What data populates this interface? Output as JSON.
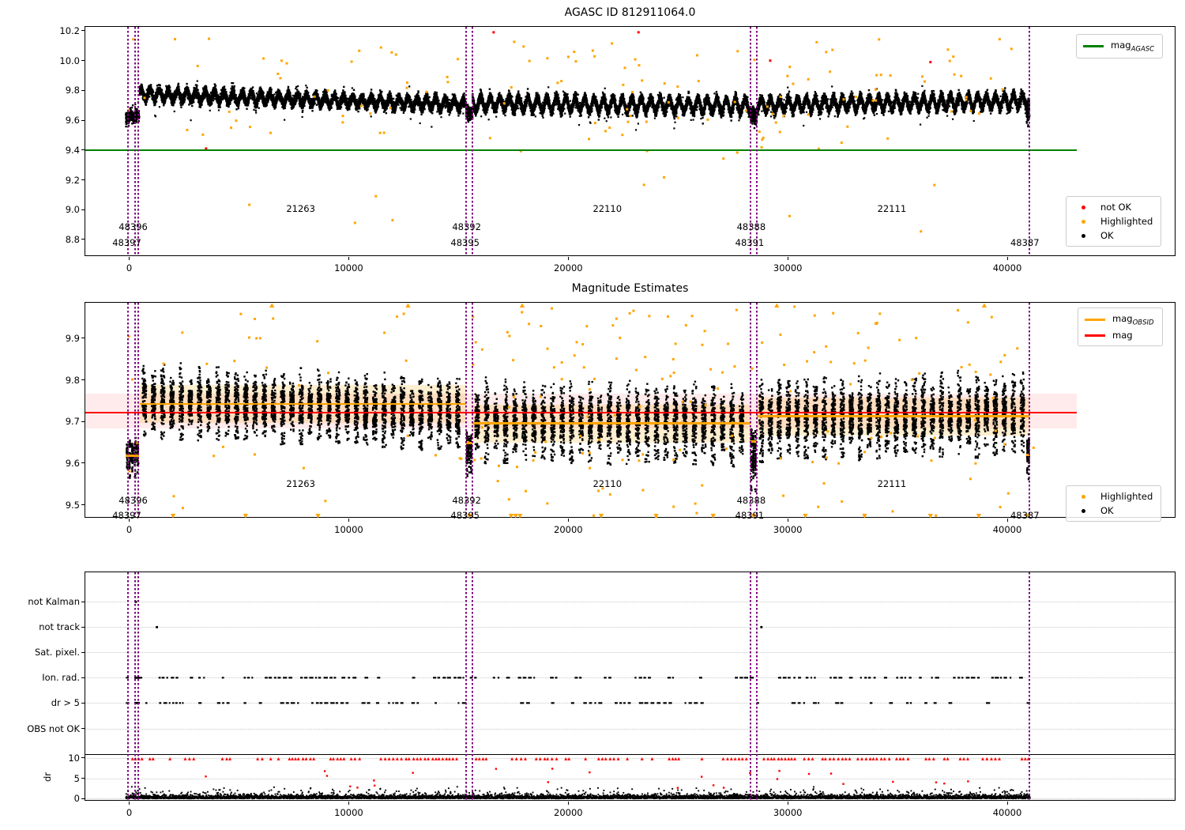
{
  "figure_background": "#ffffff",
  "colors": {
    "ok": "#000000",
    "highlighted": "#ffa500",
    "not_ok": "#ff0000",
    "mag_agasc_line": "#008000",
    "mag_obsid_line": "#ffa500",
    "mag_line": "#ff0000",
    "mag_band": "rgba(255,0,0,0.08)",
    "obsid_band": "rgba(255,165,0,0.18)",
    "vline": "#800080",
    "grid": "#c8c8c8"
  },
  "chart_data": [
    {
      "id": "mag-agasc",
      "type": "scatter",
      "title": "AGASC ID 812911064.0",
      "xlim": [
        -2000,
        47700
      ],
      "ylim": [
        8.683,
        10.2265
      ],
      "xticks": {
        "values": [
          0,
          10000,
          20000,
          30000,
          40000
        ],
        "labels": [
          "0",
          "10000",
          "20000",
          "30000",
          "40000"
        ]
      },
      "yticks": {
        "values": [
          8.8,
          9.0,
          9.2,
          9.4,
          9.6,
          9.8,
          10.0,
          10.2
        ],
        "labels": [
          "8.8",
          "9.0",
          "9.2",
          "9.4",
          "9.6",
          "9.8",
          "10.0",
          "10.2"
        ]
      },
      "agasc_mag_line": {
        "y": 9.4,
        "x0": -2000,
        "x1": 43150,
        "color": "#008000"
      },
      "vlines": {
        "color": "#800080",
        "x": [
          -50,
          280,
          410,
          15350,
          15640,
          28300,
          28590,
          41000
        ]
      },
      "text_labels": [
        {
          "text": "21263",
          "x": 7812,
          "y": 9.0
        },
        {
          "text": "22110",
          "x": 21780,
          "y": 9.0
        },
        {
          "text": "22111",
          "x": 34740,
          "y": 9.0
        },
        {
          "text": "48396",
          "x": 180,
          "y": 8.878
        },
        {
          "text": "48397",
          "x": -110,
          "y": 8.773
        },
        {
          "text": "48392",
          "x": 15370,
          "y": 8.878
        },
        {
          "text": "48395",
          "x": 15300,
          "y": 8.773
        },
        {
          "text": "48388",
          "x": 28335,
          "y": 8.878
        },
        {
          "text": "48391",
          "x": 28265,
          "y": 8.773
        },
        {
          "text": "48387",
          "x": 40800,
          "y": 8.773
        }
      ],
      "legends": [
        {
          "x": 1254,
          "y": 9,
          "items": [
            {
              "swatch": "line",
              "color": "#008000",
              "label": "mag",
              "sub": "AGASC"
            }
          ]
        },
        {
          "x": 1241,
          "y": 214,
          "items": [
            {
              "swatch": "dot",
              "color": "#ff0000",
              "label": "not OK"
            },
            {
              "swatch": "dot",
              "color": "#ffa500",
              "label": "Highlighted"
            },
            {
              "swatch": "dot",
              "color": "#000000",
              "label": "OK"
            }
          ]
        }
      ],
      "series": {
        "ok_segments": [
          {
            "x0": -150,
            "x1": 450,
            "m": 9.625,
            "sd": 0.02,
            "amp": 0.012,
            "period": 300
          },
          {
            "x0": 480,
            "x1": 15350,
            "m0": 9.775,
            "m1": 9.705,
            "amp": 0.034,
            "sd": 0.017,
            "period": 420
          },
          {
            "x0": 15350,
            "x1": 15640,
            "m": 9.645,
            "sd": 0.022,
            "amp": 0
          },
          {
            "x0": 15640,
            "x1": 28300,
            "m0": 9.713,
            "m1": 9.697,
            "amp": 0.044,
            "sd": 0.017,
            "period": 430
          },
          {
            "x0": 28300,
            "x1": 28590,
            "m": 9.635,
            "sd": 0.027,
            "amp": 0
          },
          {
            "x0": 28590,
            "x1": 41000,
            "m0": 9.703,
            "m1": 9.728,
            "amp": 0.042,
            "sd": 0.017,
            "period": 410
          },
          {
            "x0": 40880,
            "x1": 41010,
            "m": 9.64,
            "sd": 0.03,
            "amp": 0
          }
        ],
        "highlighted": {
          "count": 140,
          "seed": 7
        },
        "not_ok_points": [
          [
            3500,
            9.41
          ],
          [
            16600,
            10.19
          ],
          [
            23200,
            10.19
          ],
          [
            36500,
            9.99
          ],
          [
            29200,
            10.0
          ]
        ]
      }
    },
    {
      "id": "magnitude-estimates",
      "type": "scatter",
      "title": "Magnitude Estimates",
      "xlim": [
        -2000,
        47700
      ],
      "ylim": [
        9.467,
        9.985
      ],
      "xticks": {
        "values": [
          0,
          10000,
          20000,
          30000,
          40000
        ],
        "labels": [
          "0",
          "10000",
          "20000",
          "30000",
          "40000"
        ]
      },
      "yticks": {
        "values": [
          9.5,
          9.6,
          9.7,
          9.8,
          9.9
        ],
        "labels": [
          "9.5",
          "9.6",
          "9.7",
          "9.8",
          "9.9"
        ]
      },
      "mag_line": {
        "y": 9.722,
        "x0": -2000,
        "x1": 43150,
        "color": "#ff0000"
      },
      "mag_band": {
        "y0": 9.684,
        "y1": 9.766,
        "x0": -2000,
        "x1": 43150
      },
      "obsid_lines": [
        {
          "x0": -150,
          "x1": 450,
          "y": 9.618
        },
        {
          "x0": 480,
          "x1": 15350,
          "y": 9.742,
          "band": [
            9.697,
            9.787
          ]
        },
        {
          "x0": 15350,
          "x1": 15640,
          "y": 9.648
        },
        {
          "x0": 15640,
          "x1": 28300,
          "y": 9.695,
          "band": [
            9.65,
            9.74
          ]
        },
        {
          "x0": 28300,
          "x1": 28590,
          "y": 9.652
        },
        {
          "x0": 28590,
          "x1": 41000,
          "y": 9.712,
          "band": [
            9.667,
            9.757
          ]
        },
        {
          "x0": 40880,
          "x1": 41010,
          "y": 9.62
        }
      ],
      "vlines": {
        "color": "#800080",
        "x": [
          -50,
          280,
          410,
          15350,
          15640,
          28300,
          28590,
          41000
        ]
      },
      "text_labels": [
        {
          "text": "21263",
          "x": 7812,
          "y": 9.549
        },
        {
          "text": "22110",
          "x": 21780,
          "y": 9.549
        },
        {
          "text": "22111",
          "x": 34740,
          "y": 9.549
        },
        {
          "text": "48396",
          "x": 180,
          "y": 9.508
        },
        {
          "text": "48397",
          "x": -110,
          "y": 9.472
        },
        {
          "text": "48392",
          "x": 15370,
          "y": 9.508
        },
        {
          "text": "48395",
          "x": 15300,
          "y": 9.472
        },
        {
          "text": "48388",
          "x": 28335,
          "y": 9.508
        },
        {
          "text": "48391",
          "x": 28265,
          "y": 9.472
        },
        {
          "text": "48387",
          "x": 40800,
          "y": 9.472
        }
      ],
      "clip_markers": {
        "bottom_x": [
          2000,
          5300,
          8600,
          15500,
          17400,
          17600,
          17800,
          21500,
          24000,
          26600,
          28450,
          30800,
          33500,
          36500,
          38700,
          40900
        ],
        "top_x": [
          6500,
          12700,
          17900,
          29500,
          38950
        ]
      },
      "legends": [
        {
          "x": 1256,
          "y": 6,
          "items": [
            {
              "swatch": "line",
              "color": "#ffa500",
              "label": "mag",
              "sub": "OBSID"
            },
            {
              "swatch": "line",
              "color": "#ff0000",
              "label": "mag",
              "sub": ""
            }
          ]
        },
        {
          "x": 1241,
          "y": 231,
          "items": [
            {
              "swatch": "dot",
              "color": "#ffa500",
              "label": "Highlighted"
            },
            {
              "swatch": "dot",
              "color": "#000000",
              "label": "OK"
            }
          ]
        }
      ],
      "series": {
        "clusters": [
          {
            "x0": -150,
            "x1": 450,
            "m": 9.622,
            "h": 0.035,
            "step": 120,
            "n": 45
          },
          {
            "x0": 480,
            "x1": 15350,
            "m0": 9.748,
            "m1": 9.716,
            "h": 0.052,
            "step": 420,
            "n": 115,
            "tall": 0.085
          },
          {
            "x0": 15350,
            "x1": 15640,
            "m": 9.633,
            "h": 0.04,
            "step": 90,
            "n": 45
          },
          {
            "x0": 15640,
            "x1": 28300,
            "m0": 9.7,
            "m1": 9.69,
            "h": 0.058,
            "step": 430,
            "n": 115,
            "tall": 0.075
          },
          {
            "x0": 28300,
            "x1": 28590,
            "m": 9.63,
            "h": 0.065,
            "step": 90,
            "n": 45
          },
          {
            "x0": 28590,
            "x1": 41000,
            "m0": 9.703,
            "m1": 9.717,
            "h": 0.06,
            "step": 410,
            "n": 115,
            "tall": 0.085
          },
          {
            "x0": 40880,
            "x1": 41010,
            "m": 9.63,
            "h": 0.045,
            "step": 70,
            "n": 40
          }
        ],
        "highlighted": {
          "count": 190,
          "seed": 11
        }
      }
    },
    {
      "id": "flags-dr",
      "type": "scatter",
      "title": "",
      "xlim": [
        -2000,
        47700
      ],
      "ylim": [
        -0.75,
        55.9
      ],
      "xticks": {
        "values": [
          0,
          10000,
          20000,
          30000,
          40000
        ],
        "labels": [
          "0",
          "10000",
          "20000",
          "30000",
          "40000"
        ]
      },
      "categories": [
        {
          "label": "not Kalman",
          "y": 48.6
        },
        {
          "label": "not track",
          "y": 42.35
        },
        {
          "label": "Sat. pixel.",
          "y": 36.1
        },
        {
          "label": "Ion. rad.",
          "y": 29.85
        },
        {
          "label": "dr > 5",
          "y": 23.6
        },
        {
          "label": "OBS not OK",
          "y": 17.3
        }
      ],
      "dr_ticks": {
        "values": [
          10,
          5,
          0
        ],
        "labels": [
          "10",
          "5",
          "0"
        ]
      },
      "dr_axis_label": "dr",
      "separator_y": 11.0,
      "vlines": {
        "color": "#800080",
        "x": [
          -50,
          280,
          410,
          15350,
          15640,
          28300,
          28590,
          41000
        ]
      },
      "series": {
        "dash_rows": [
          {
            "row": "Ion. rad.",
            "y": 29.85,
            "seed": 21
          },
          {
            "row": "dr > 5",
            "y": 23.6,
            "seed": 22
          }
        ],
        "dash_solid_block": [
          230,
          480
        ],
        "flag_points": [
          {
            "y": 48.6,
            "x": 300
          },
          {
            "y": 42.35,
            "x": 1260
          },
          {
            "y": 42.35,
            "x": 28800
          }
        ],
        "clipped_red_row": {
          "y": 9.75,
          "x0": 150,
          "x1": 41000,
          "seed": 23
        },
        "red_outliers": {
          "count": 26,
          "seed": 5,
          "dr_min": 2.6,
          "dr_max": 7.4
        },
        "noise": {
          "x0": -150,
          "x1": 41030,
          "step": 14,
          "sd": 0.55,
          "seed": 31
        }
      }
    }
  ]
}
